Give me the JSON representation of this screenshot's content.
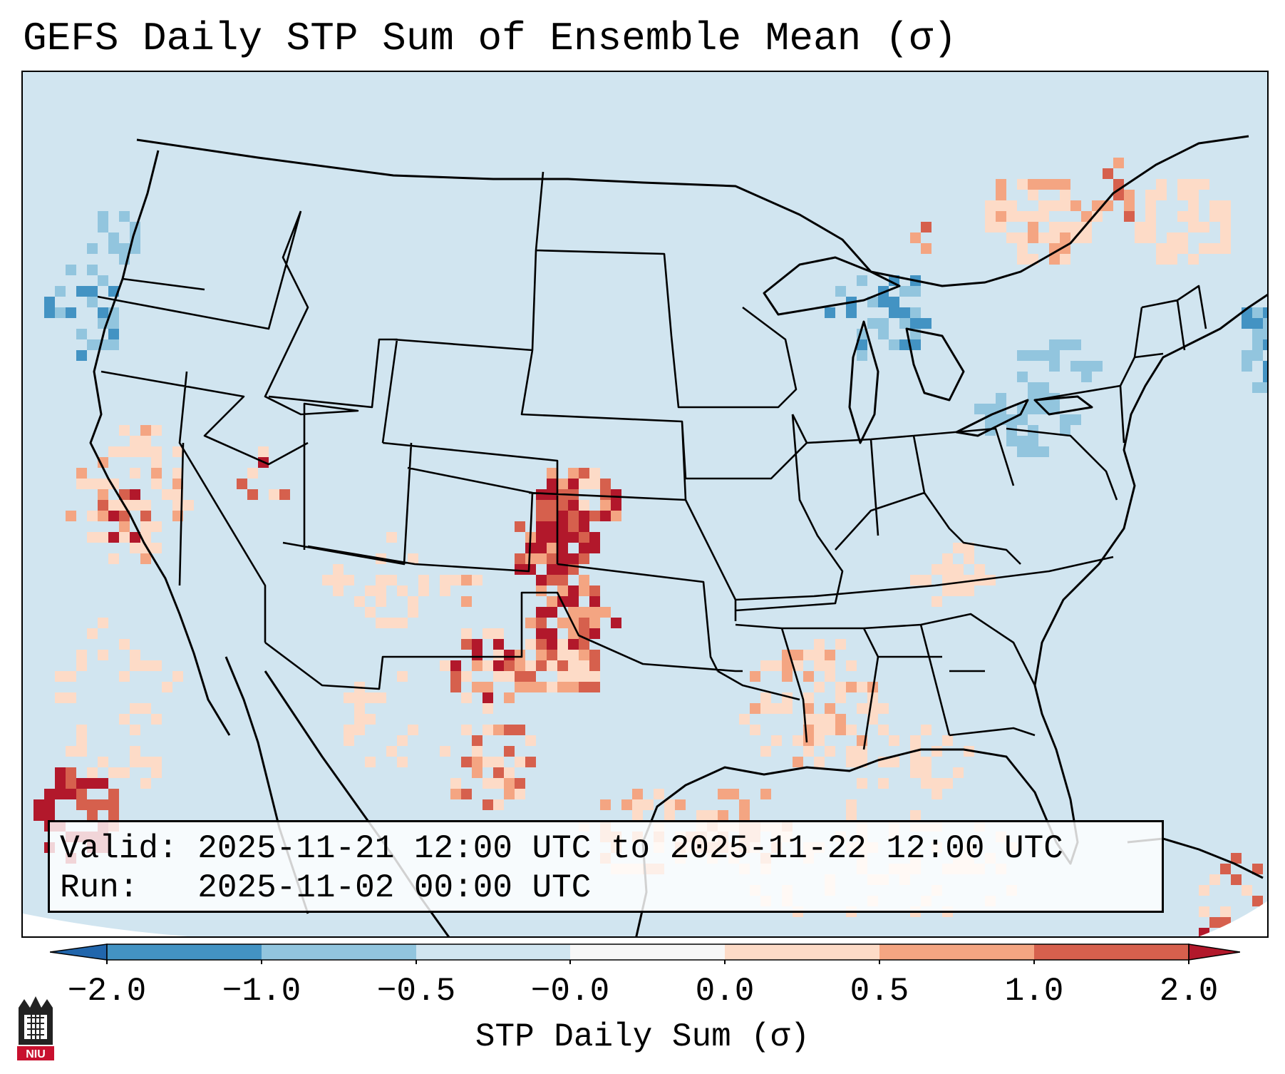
{
  "title": "GEFS Daily STP Sum of Ensemble Mean (σ)",
  "info_box": {
    "valid_label": "Valid:",
    "valid_value": "2025-11-21 12:00 UTC to 2025-11-22 12:00 UTC",
    "run_label": "Run:",
    "run_value": "2025-11-02 00:00 UTC"
  },
  "colorbar": {
    "label": "STP Daily Sum (σ)",
    "ticks": [
      "−2.0",
      "−1.0",
      "−0.5",
      "−0.0",
      "0.0",
      "0.5",
      "1.0",
      "2.0"
    ],
    "bins": [
      {
        "range": "< -2.0",
        "color": "#2166ac"
      },
      {
        "range": "-2.0 to -1.0",
        "color": "#4393c3"
      },
      {
        "range": "-1.0 to -0.5",
        "color": "#92c5de"
      },
      {
        "range": "-0.5 to -0.0",
        "color": "#d1e5f0"
      },
      {
        "range": "-0.0 to 0.0",
        "color": "#f7f7f7"
      },
      {
        "range": "0.0 to 0.5",
        "color": "#fddbc7"
      },
      {
        "range": "0.5 to 1.0",
        "color": "#f4a582"
      },
      {
        "range": "1.0 to 2.0",
        "color": "#d6604d"
      },
      {
        "range": "> 2.0",
        "color": "#b2182b"
      }
    ]
  },
  "map": {
    "region": "CONUS",
    "background_color": "#d1e5f0",
    "max_anomaly_region": "Kansas / Oklahoma",
    "coastline_color": "#000000"
  },
  "logo": {
    "text": "NIU"
  }
}
